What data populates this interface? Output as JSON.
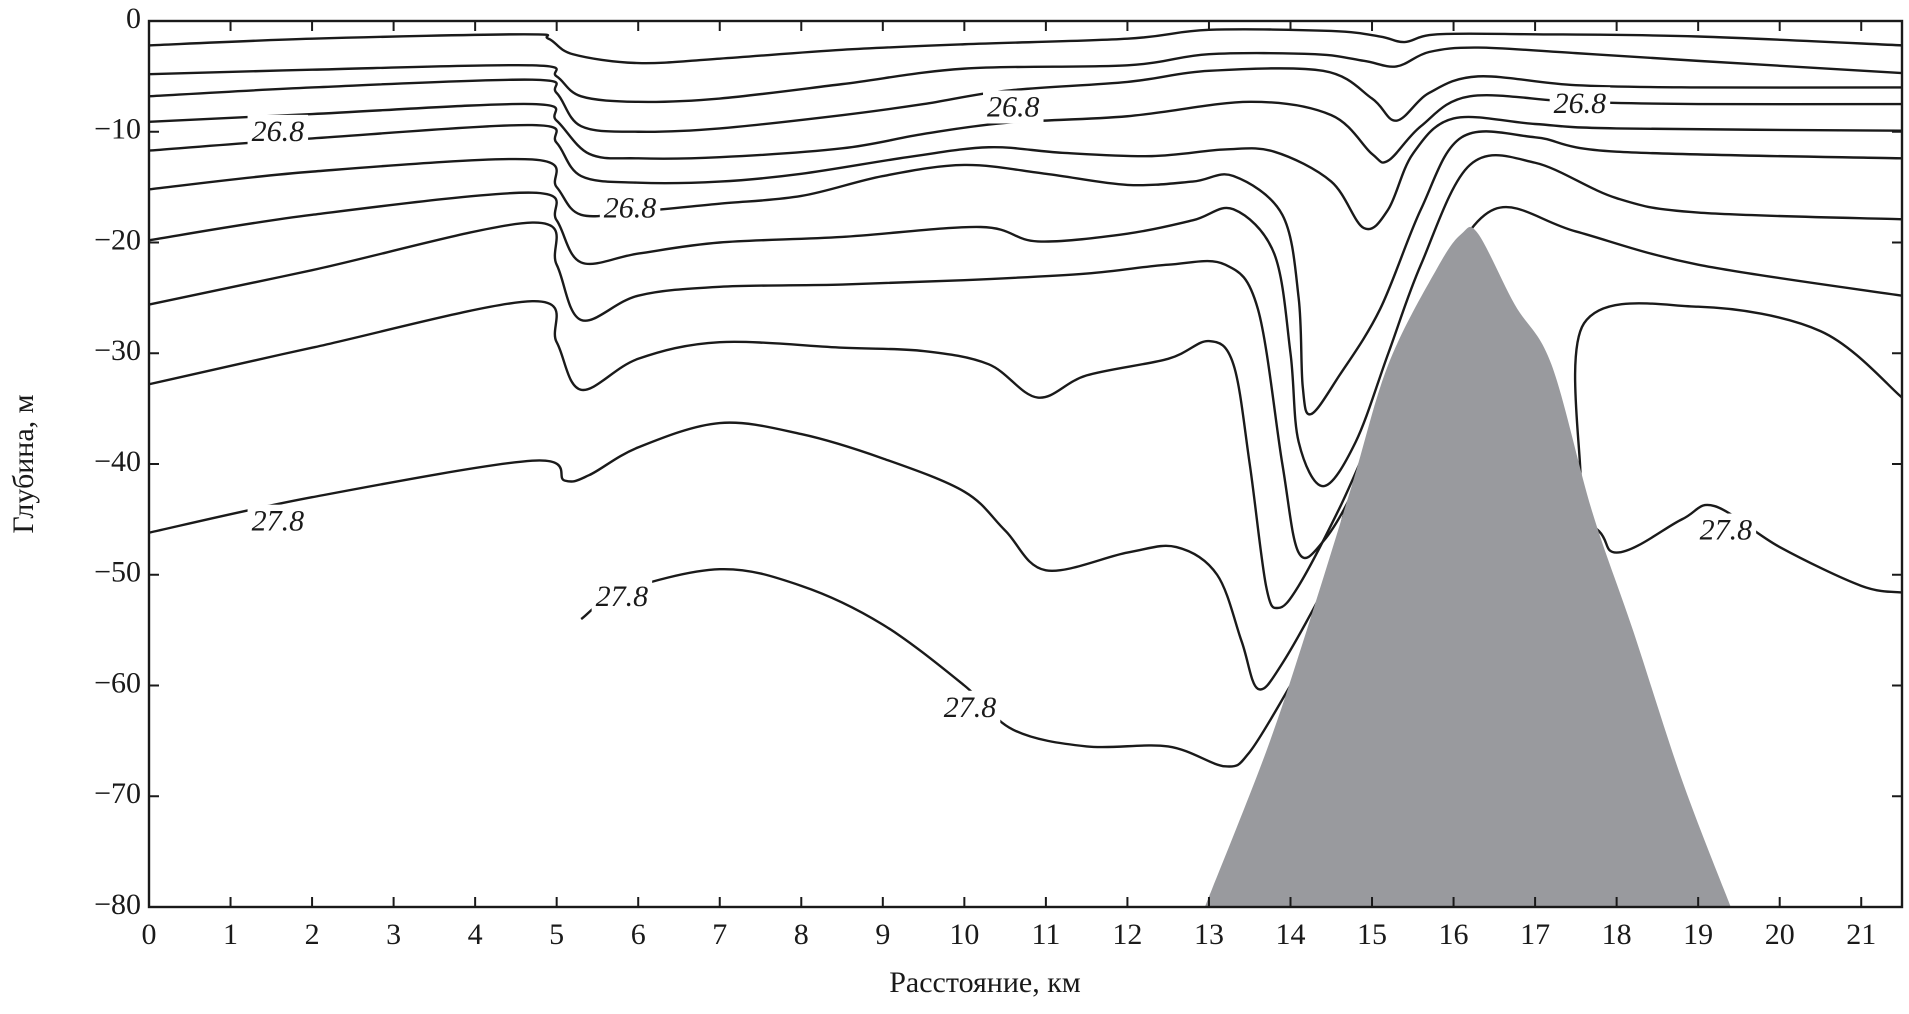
{
  "chart_data": {
    "type": "contour",
    "xlabel": "Расстояние, км",
    "ylabel": "Глубина, м",
    "xlim": [
      0,
      21.5
    ],
    "ylim": [
      -80,
      0
    ],
    "xticks": [
      0,
      1,
      2,
      3,
      4,
      5,
      6,
      7,
      8,
      9,
      10,
      11,
      12,
      13,
      14,
      15,
      16,
      17,
      18,
      19,
      20,
      21
    ],
    "yticks": [
      0,
      {
        "value": -10,
        "label": "−10"
      },
      {
        "value": -20,
        "label": "−20"
      },
      {
        "value": -30,
        "label": "−30"
      },
      {
        "value": -40,
        "label": "−40"
      },
      {
        "value": -50,
        "label": "−50"
      },
      {
        "value": -60,
        "label": "−60"
      },
      {
        "value": -70,
        "label": "−70"
      },
      {
        "value": -80,
        "label": "−80"
      }
    ],
    "line_color": "#1a1a1a",
    "lines": [
      {
        "x": [
          0,
          2,
          4.6,
          4.9,
          5.2,
          6,
          7,
          8.5,
          10,
          12,
          13,
          14.5,
          15.1,
          15.4,
          15.8,
          17,
          19,
          21.5
        ],
        "values": [
          -2.2,
          -1.6,
          -1.2,
          -1.6,
          -3.0,
          -3.8,
          -3.4,
          -2.6,
          -2.1,
          -1.6,
          -0.8,
          -0.9,
          -1.4,
          -1.9,
          -1.2,
          -1.2,
          -1.4,
          -2.2
        ]
      },
      {
        "x": [
          0,
          2,
          4.7,
          5.0,
          5.3,
          6,
          7,
          8.5,
          10,
          12,
          13,
          14.3,
          14.9,
          15.3,
          15.7,
          16.3,
          17.5,
          19,
          21.5
        ],
        "values": [
          -4.8,
          -4.4,
          -4.0,
          -5,
          -6.8,
          -7.3,
          -7,
          -5.7,
          -4.3,
          -4.0,
          -3,
          -3,
          -3.6,
          -4.1,
          -2.8,
          -2.4,
          -2.9,
          -3.6,
          -4.7
        ]
      },
      {
        "x": [
          0,
          2,
          4.7,
          5.0,
          5.3,
          6,
          7,
          8.5,
          9.5,
          10.5,
          12,
          13,
          14.4,
          15.0,
          15.3,
          15.7,
          16.3,
          17.5,
          19,
          21.5
        ],
        "values": [
          -6.8,
          -6.0,
          -5.3,
          -6.5,
          -9.5,
          -10,
          -9.7,
          -8.5,
          -7.5,
          -6.3,
          -5.5,
          -4.5,
          -4.5,
          -7,
          -9.0,
          -6.5,
          -5,
          -5.8,
          -6,
          -6
        ]
      },
      {
        "x": [
          0,
          2,
          4.7,
          5.0,
          5.4,
          6,
          7,
          8.5,
          9.5,
          10.5,
          12,
          13.5,
          14.5,
          15.0,
          15.2,
          15.6,
          16.2,
          17.5,
          19,
          21.5
        ],
        "values": [
          -9.1,
          -8.4,
          -7.5,
          -9,
          -12,
          -12.4,
          -12.3,
          -11.5,
          -10.2,
          -9.2,
          -8.6,
          -7.3,
          -8.5,
          -12,
          -12.6,
          -9.5,
          -6.8,
          -7.3,
          -7.5,
          -7.5
        ]
      },
      {
        "x": [
          0,
          2,
          4.7,
          5.0,
          5.3,
          6,
          7,
          8,
          9.3,
          10.3,
          11.2,
          12.3,
          13.2,
          13.8,
          14.5,
          14.9,
          15.2,
          15.5,
          16,
          17,
          18,
          21.5
        ],
        "values": [
          -11.7,
          -10.6,
          -9.4,
          -11,
          -14,
          -14.6,
          -14.5,
          -13.8,
          -12.3,
          -11.4,
          -11.9,
          -12.2,
          -11.6,
          -11.8,
          -14.5,
          -18.7,
          -17,
          -12,
          -8.8,
          -9.3,
          -9.7,
          -9.9
        ]
      },
      {
        "x": [
          0,
          2,
          4.7,
          5.0,
          5.3,
          6,
          7,
          8,
          9,
          10,
          11,
          12,
          12.8,
          13.3,
          13.9,
          14.1,
          14.15,
          14.25,
          14.6,
          15.1,
          15.6,
          16.1,
          17,
          18,
          21.5
        ],
        "values": [
          -15.2,
          -13.6,
          -12.5,
          -15,
          -17.5,
          -17.2,
          -16.5,
          -15.8,
          -14,
          -13,
          -13.8,
          -14.8,
          -14.5,
          -14,
          -17.5,
          -25,
          -33,
          -35.5,
          -32,
          -26,
          -17,
          -10.5,
          -10.5,
          -11.8,
          -12.4
        ]
      },
      {
        "x": [
          0,
          2,
          4.7,
          5.0,
          5.3,
          6,
          7,
          8.5,
          10.2,
          10.9,
          12,
          12.8,
          13.3,
          13.8,
          14.0,
          14.1,
          14.4,
          14.8,
          15.2,
          15.6,
          16.2,
          17,
          18,
          19,
          21.5
        ],
        "values": [
          -19.8,
          -17.5,
          -15.5,
          -18,
          -21.8,
          -21,
          -20,
          -19.5,
          -18.6,
          -19.9,
          -19.2,
          -18,
          -17,
          -21,
          -30,
          -38,
          -42,
          -38,
          -30,
          -22,
          -13,
          -12.8,
          -16,
          -17.3,
          -17.9
        ]
      },
      {
        "x": [
          0,
          2,
          4.7,
          5.0,
          5.3,
          6,
          7,
          8.5,
          10,
          11.5,
          12.5,
          13.2,
          13.6,
          13.9,
          14.1,
          14.4,
          14.8,
          15.3,
          15.8,
          16.5,
          17.5,
          19,
          21.5
        ],
        "values": [
          -25.6,
          -22.5,
          -18.2,
          -22,
          -27,
          -24.8,
          -24,
          -23.8,
          -23.4,
          -22.8,
          -22,
          -22,
          -26,
          -40,
          -48,
          -47,
          -42,
          -33,
          -24,
          -17,
          -19,
          -22,
          -24.8
        ]
      },
      {
        "x": [
          0,
          2,
          4.7,
          5.0,
          5.3,
          6,
          7,
          8.5,
          9.5,
          10.3,
          10.9,
          11.5,
          12.5,
          13.0,
          13.3,
          13.5,
          13.7,
          13.85,
          14.1,
          14.6,
          15.1,
          15.6,
          16.5,
          17.3,
          17.55,
          17.6,
          19,
          20.5,
          21.5
        ],
        "values": [
          -32.8,
          -29.5,
          -25.3,
          -29,
          -33.3,
          -30.5,
          -29,
          -29.5,
          -29.8,
          -31,
          -34,
          -32,
          -30.5,
          -28.9,
          -31,
          -40,
          -51,
          -53,
          -51,
          -44,
          -36,
          -30,
          -30,
          -38,
          -42,
          -27.3,
          -25.8,
          -28,
          -34
        ]
      },
      {
        "x": [
          0,
          2,
          4.7,
          5.1,
          5.4,
          6,
          7,
          8,
          9,
          10,
          10.5,
          11,
          12,
          12.6,
          13.1,
          13.4,
          13.6,
          13.9,
          14.5,
          15,
          17.5,
          18,
          18.8,
          19.2,
          20,
          21,
          21.5
        ],
        "values": [
          -46.2,
          -43,
          -39.7,
          -41.5,
          -41,
          -38.5,
          -36.3,
          -37.3,
          -39.5,
          -42.5,
          -46,
          -49.6,
          -48,
          -47.5,
          -50,
          -56,
          -60.3,
          -58,
          -50,
          -42,
          -45,
          -48,
          -45,
          -43.8,
          -47.5,
          -51,
          -51.6
        ]
      },
      {
        "x": [
          5.3,
          5.8,
          7,
          8,
          9,
          10,
          10.6,
          11.5,
          12.5,
          13.2,
          13.5,
          14
        ],
        "values": [
          -54,
          -51.5,
          -49.5,
          -51,
          -54.5,
          -60,
          -64,
          -65.5,
          -65.5,
          -67.3,
          -66,
          -60
        ]
      }
    ],
    "terrain": {
      "color": "#999a9e",
      "x": [
        12.95,
        13.7,
        14.2,
        14.75,
        15.2,
        15.8,
        16.1,
        16.3,
        16.75,
        17.2,
        17.7,
        18.2,
        18.8,
        19.4
      ],
      "values": [
        -80,
        -66,
        -55,
        -42,
        -31,
        -22.3,
        -19.2,
        -19.2,
        -25.6,
        -31,
        -44.3,
        -55,
        -68.5,
        -80
      ]
    },
    "annotations": [
      {
        "text": "26.8",
        "x": 1.58,
        "y": -10.2
      },
      {
        "text": "26.8",
        "x": 5.9,
        "y": -17.1
      },
      {
        "text": "26.8",
        "x": 10.6,
        "y": -8.0
      },
      {
        "text": "26.8",
        "x": 17.55,
        "y": -7.7
      },
      {
        "text": "27.8",
        "x": 1.58,
        "y": -45.4
      },
      {
        "text": "27.8",
        "x": 5.8,
        "y": -52.2
      },
      {
        "text": "27.8",
        "x": 10.07,
        "y": -62.2
      },
      {
        "text": "27.8",
        "x": 19.34,
        "y": -46.2
      }
    ]
  }
}
